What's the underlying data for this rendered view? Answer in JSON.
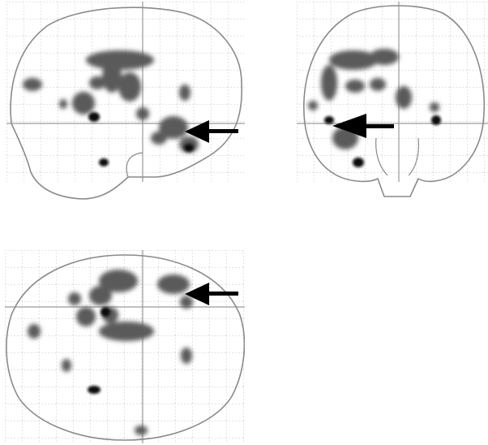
{
  "figure": {
    "type": "glass-brain-projections",
    "colors": {
      "background": "#ffffff",
      "grid": "#c4c4c4",
      "outline": "#8a8a8a",
      "blob": "#5a5a5a",
      "peak": "#111111",
      "arrow": "#000000"
    },
    "views": [
      {
        "id": "sagittal",
        "name": "sagittal-view",
        "arrow": true
      },
      {
        "id": "coronal",
        "name": "coronal-view",
        "arrow": true
      },
      {
        "id": "axial",
        "name": "axial-view",
        "arrow": true
      }
    ]
  }
}
